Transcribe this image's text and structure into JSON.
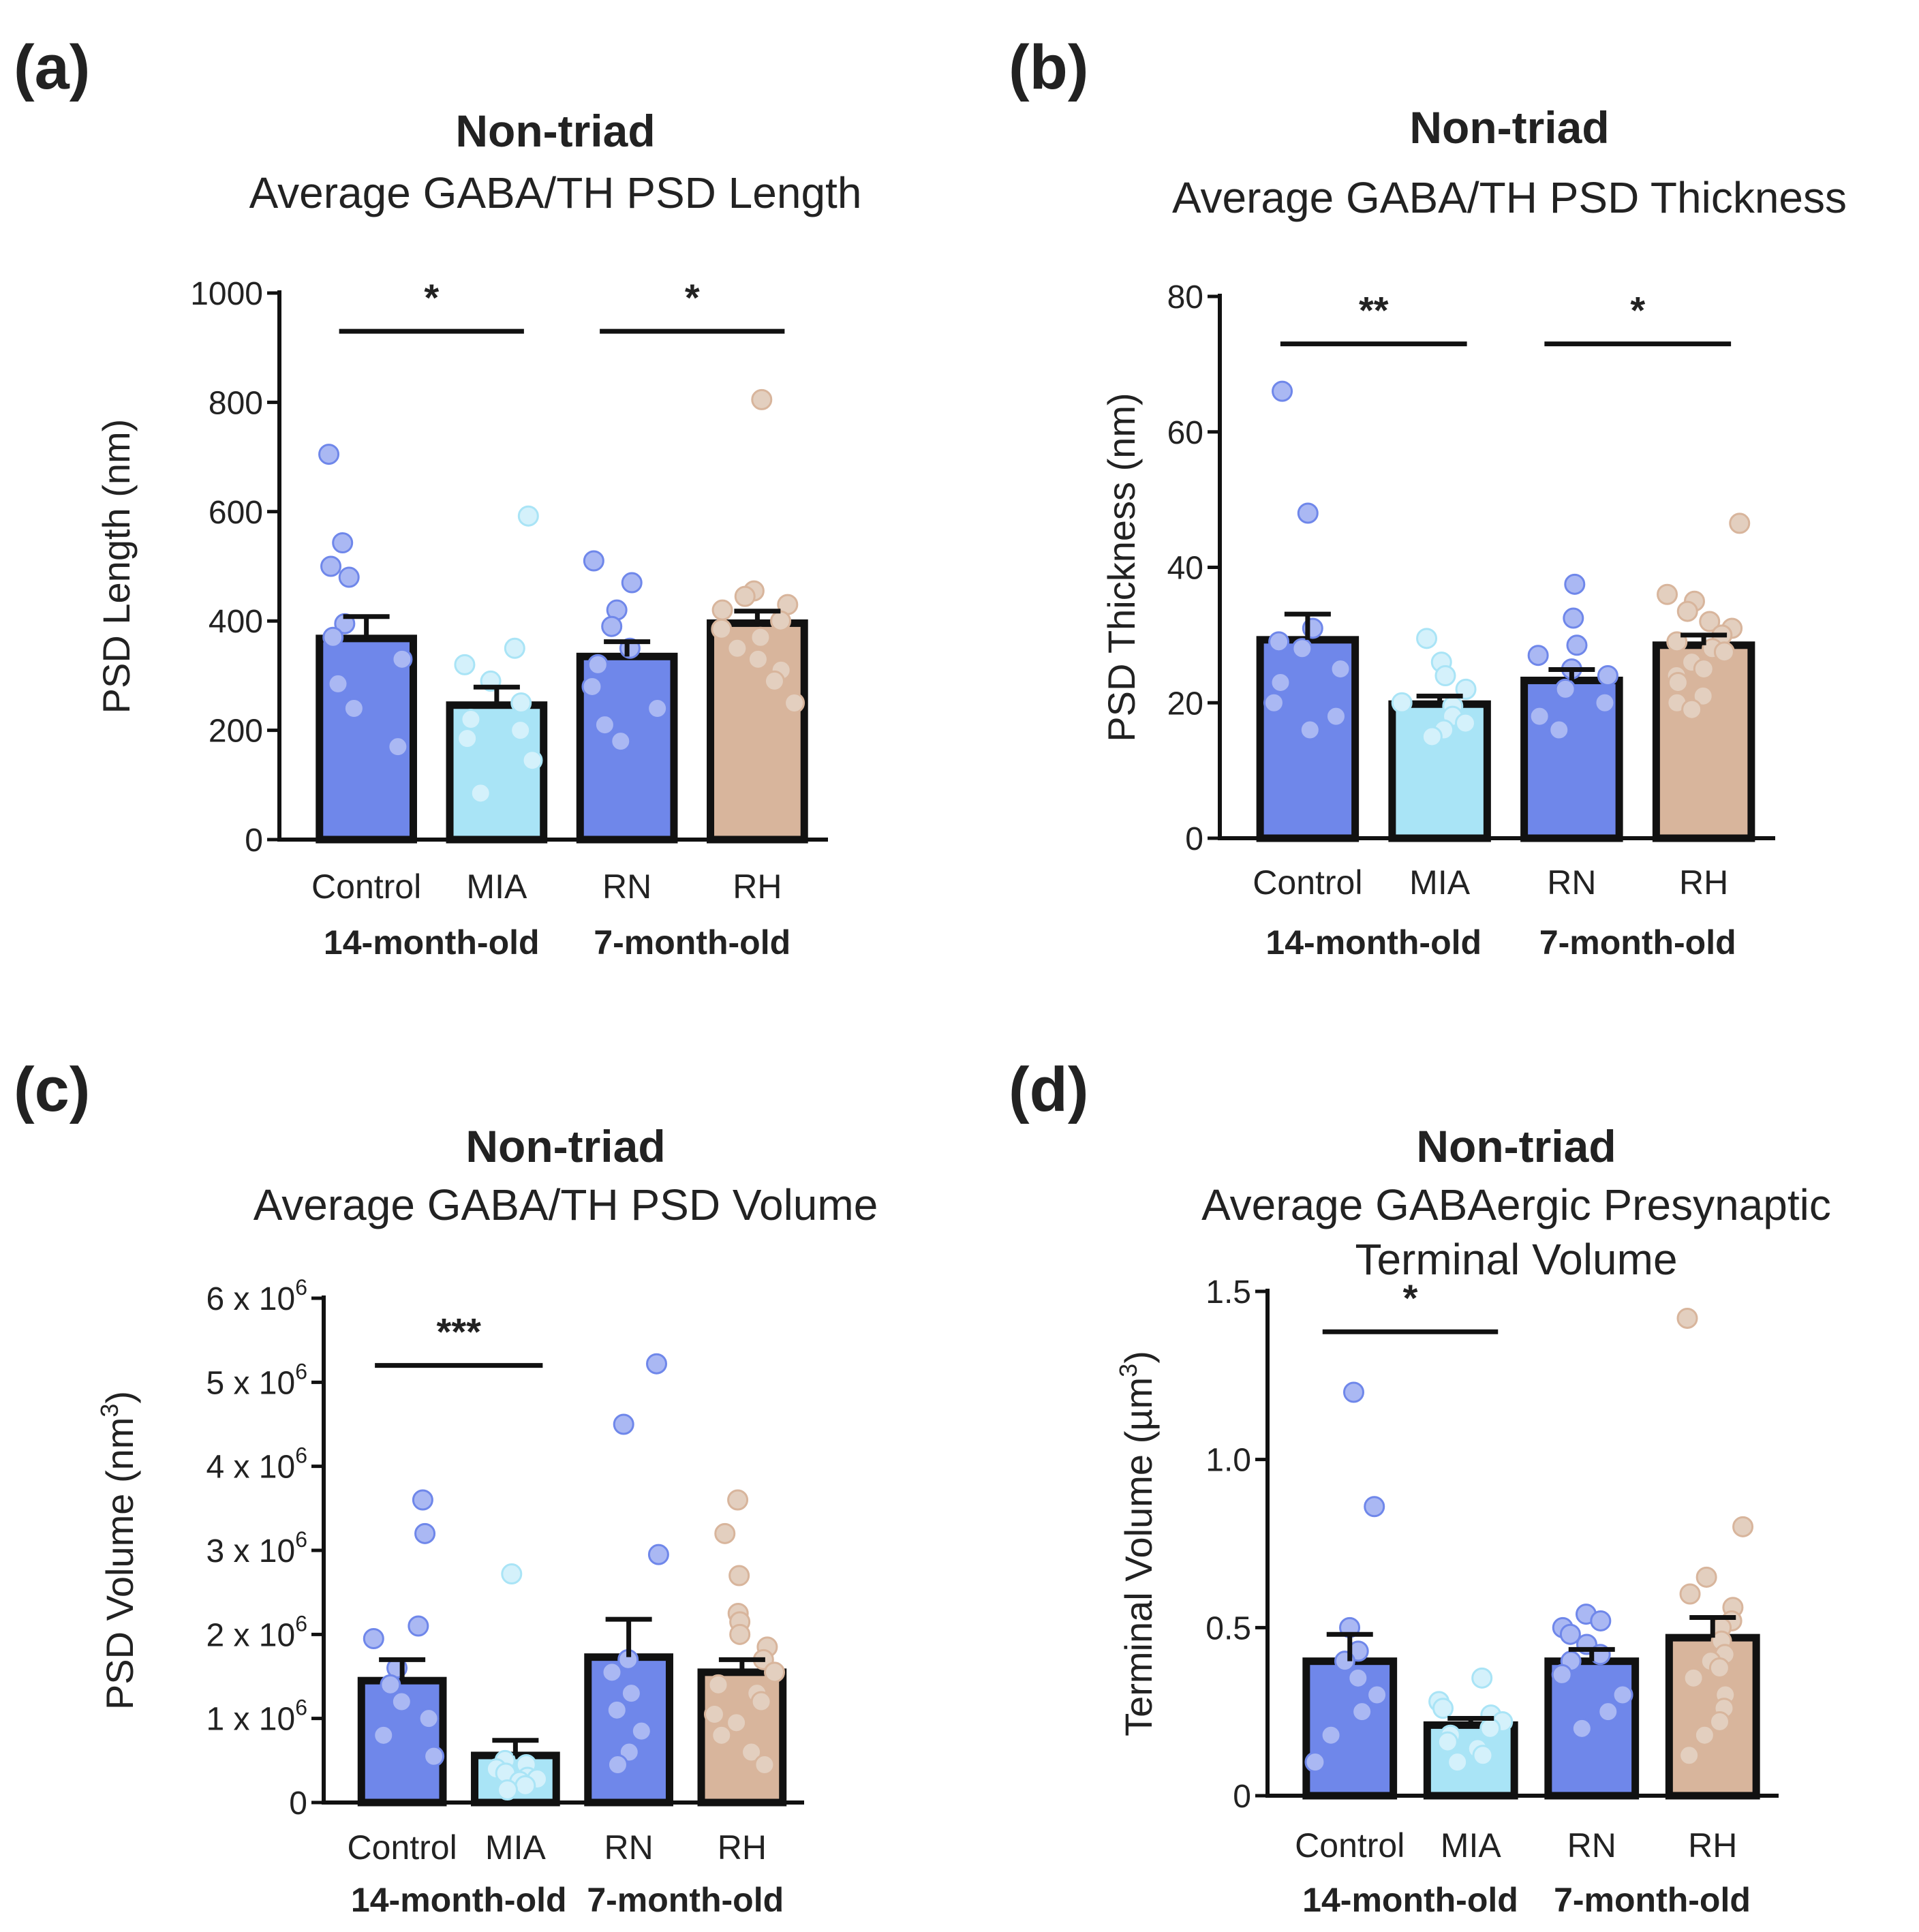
{
  "colors": {
    "Control": "#6f87ea",
    "MIA": "#a9e4f6",
    "RN": "#6f87ea",
    "RH": "#d8b59c",
    "Control_point": "#aab8f3",
    "MIA_point": "#d4f1fb",
    "RN_point": "#aab8f3",
    "RH_point": "#e3cfbf"
  },
  "chart_data": [
    {
      "type": "bar",
      "panel_label": "(a)",
      "title": "Non-triad",
      "subtitle": "Average GABA/TH PSD Length",
      "ylabel": "PSD Length (nm)",
      "ylim": [
        0,
        1000
      ],
      "yticks": [
        0,
        200,
        400,
        600,
        800,
        1000
      ],
      "ytick_labels": [
        "0",
        "200",
        "400",
        "600",
        "800",
        "1000"
      ],
      "categories": [
        "Control",
        "MIA",
        "RN",
        "RH"
      ],
      "groups": [
        {
          "label": "14-month-old",
          "categories": [
            "Control",
            "MIA"
          ]
        },
        {
          "label": "7-month-old",
          "categories": [
            "RN",
            "RH"
          ]
        }
      ],
      "means": [
        368,
        246,
        335,
        396
      ],
      "sem": [
        40,
        33,
        27,
        22
      ],
      "points": [
        [
          705,
          543,
          500,
          480,
          395,
          370,
          330,
          285,
          240,
          170
        ],
        [
          592,
          350,
          320,
          290,
          250,
          220,
          200,
          185,
          145,
          85
        ],
        [
          510,
          470,
          420,
          390,
          350,
          320,
          280,
          240,
          210,
          180
        ],
        [
          805,
          455,
          445,
          430,
          420,
          400,
          385,
          370,
          350,
          330,
          310,
          290,
          250
        ]
      ],
      "significance": [
        {
          "from": "Control",
          "to": "MIA",
          "label": "*",
          "y": 930
        },
        {
          "from": "RN",
          "to": "RH",
          "label": "*",
          "y": 930
        }
      ]
    },
    {
      "type": "bar",
      "panel_label": "(b)",
      "title": "Non-triad",
      "subtitle": "Average GABA/TH PSD Thickness",
      "ylabel": "PSD Thickness (nm)",
      "ylim": [
        0,
        80
      ],
      "yticks": [
        0,
        20,
        40,
        60,
        80
      ],
      "ytick_labels": [
        "0",
        "20",
        "40",
        "60",
        "80"
      ],
      "categories": [
        "Control",
        "MIA",
        "RN",
        "RH"
      ],
      "groups": [
        {
          "label": "14-month-old",
          "categories": [
            "Control",
            "MIA"
          ]
        },
        {
          "label": "7-month-old",
          "categories": [
            "RN",
            "RH"
          ]
        }
      ],
      "means": [
        29.3,
        19.8,
        23.3,
        28.5
      ],
      "sem": [
        3.8,
        1.2,
        1.6,
        1.5
      ],
      "points": [
        [
          66,
          48,
          31,
          29,
          28,
          25,
          23,
          20,
          18,
          16
        ],
        [
          29.5,
          26,
          24,
          22,
          20,
          19.5,
          18,
          17,
          16,
          15
        ],
        [
          37.5,
          32.5,
          28.5,
          27,
          25,
          24,
          22,
          20,
          18,
          16
        ],
        [
          46.5,
          36,
          35,
          33.5,
          32,
          31,
          30,
          29,
          28,
          27.5,
          26,
          25,
          24,
          23,
          21,
          20,
          19
        ]
      ],
      "significance": [
        {
          "from": "Control",
          "to": "MIA",
          "label": "**",
          "y": 73
        },
        {
          "from": "RN",
          "to": "RH",
          "label": "*",
          "y": 73
        }
      ]
    },
    {
      "type": "bar",
      "panel_label": "(c)",
      "title": "Non-triad",
      "subtitle": "Average GABA/TH PSD Volume",
      "ylabel": "PSD Volume (nm",
      "ylabel_sup": "3",
      "ylabel_end": ")",
      "ylim": [
        0,
        6
      ],
      "yticks": [
        0,
        1,
        2,
        3,
        4,
        5,
        6
      ],
      "ytick_labels": [
        "0",
        "1 x 10",
        "2 x 10",
        "3 x 10",
        "4 x 10",
        "5 x 10",
        "6 x 10"
      ],
      "ytick_exp": "6",
      "categories": [
        "Control",
        "MIA",
        "RN",
        "RH"
      ],
      "groups": [
        {
          "label": "14-month-old",
          "categories": [
            "Control",
            "MIA"
          ]
        },
        {
          "label": "7-month-old",
          "categories": [
            "RN",
            "RH"
          ]
        }
      ],
      "means": [
        1.45,
        0.56,
        1.73,
        1.55
      ],
      "sem": [
        0.25,
        0.18,
        0.45,
        0.15
      ],
      "points": [
        [
          3.6,
          3.2,
          2.1,
          1.95,
          1.6,
          1.4,
          1.2,
          1.0,
          0.8,
          0.55
        ],
        [
          2.72,
          0.5,
          0.45,
          0.4,
          0.35,
          0.3,
          0.28,
          0.25,
          0.2,
          0.15
        ],
        [
          5.22,
          4.5,
          2.95,
          1.7,
          1.55,
          1.3,
          1.1,
          0.85,
          0.6,
          0.45
        ],
        [
          3.6,
          3.2,
          2.7,
          2.25,
          2.15,
          2.0,
          1.85,
          1.7,
          1.55,
          1.4,
          1.3,
          1.2,
          1.05,
          0.95,
          0.8,
          0.6,
          0.45
        ]
      ],
      "significance": [
        {
          "from": "Control",
          "to": "MIA",
          "label": "***",
          "y": 5.2
        }
      ]
    },
    {
      "type": "bar",
      "panel_label": "(d)",
      "title": "Non-triad",
      "subtitle": "Average GABAergic Presynaptic",
      "subtitle2": "Terminal Volume",
      "ylabel": "Terminal Volume (µm",
      "ylabel_sup": "3",
      "ylabel_end": ")",
      "ylim": [
        0,
        1.5
      ],
      "yticks": [
        0,
        0.5,
        1.0,
        1.5
      ],
      "ytick_labels": [
        "0",
        "0.5",
        "1.0",
        "1.5"
      ],
      "categories": [
        "Control",
        "MIA",
        "RN",
        "RH"
      ],
      "groups": [
        {
          "label": "14-month-old",
          "categories": [
            "Control",
            "MIA"
          ]
        },
        {
          "label": "7-month-old",
          "categories": [
            "RN",
            "RH"
          ]
        }
      ],
      "means": [
        0.4,
        0.21,
        0.4,
        0.47
      ],
      "sem": [
        0.08,
        0.02,
        0.035,
        0.06
      ],
      "points": [
        [
          1.2,
          0.86,
          0.5,
          0.43,
          0.4,
          0.35,
          0.3,
          0.25,
          0.18,
          0.1
        ],
        [
          0.35,
          0.28,
          0.26,
          0.24,
          0.22,
          0.2,
          0.18,
          0.16,
          0.14,
          0.12,
          0.1
        ],
        [
          0.54,
          0.52,
          0.5,
          0.48,
          0.45,
          0.42,
          0.4,
          0.36,
          0.3,
          0.25,
          0.2
        ],
        [
          1.42,
          0.8,
          0.65,
          0.6,
          0.56,
          0.52,
          0.5,
          0.46,
          0.42,
          0.4,
          0.38,
          0.35,
          0.3,
          0.26,
          0.22,
          0.18,
          0.12
        ]
      ],
      "significance": [
        {
          "from": "Control",
          "to": "MIA",
          "label": "*",
          "y": 1.38
        }
      ]
    }
  ]
}
